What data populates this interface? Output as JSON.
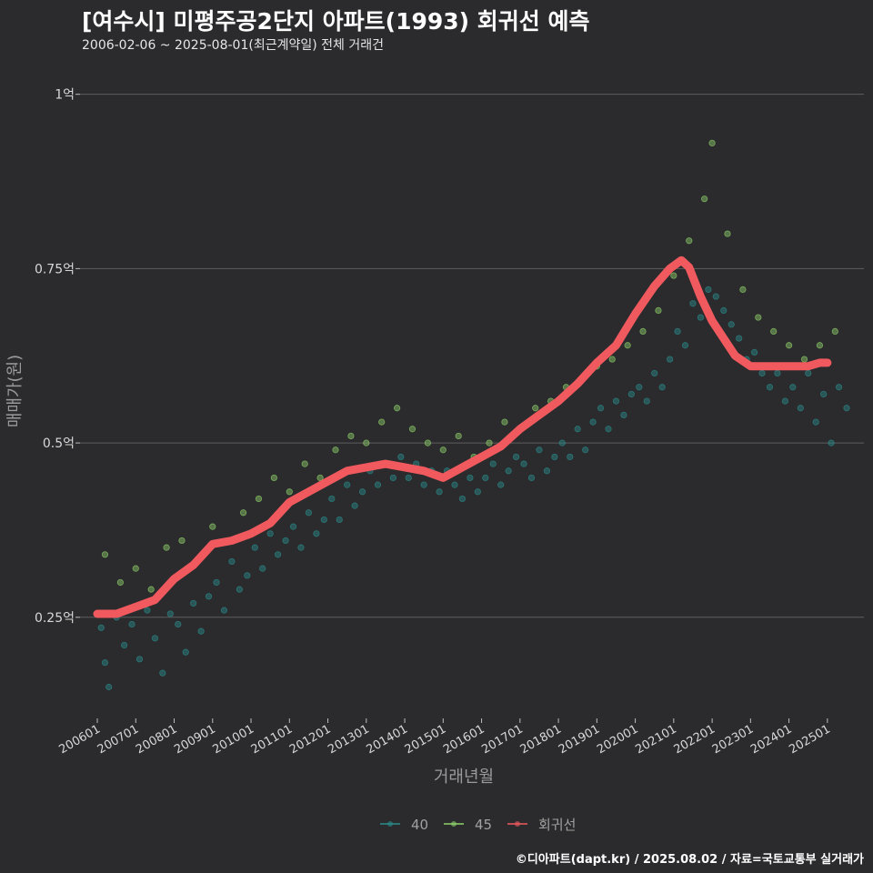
{
  "header": {
    "title": "[여수시] 미평주공2단지 아파트(1993) 회귀선 예측",
    "subtitle": "2006-02-06 ~ 2025-08-01(최근계약일) 전체 거래건"
  },
  "footer": {
    "credit": "©디아파트(dapt.kr) / 2025.08.02 / 자료=국토교통부 실거래가"
  },
  "colors": {
    "background": "#2b2b2d",
    "grid": "#5e5e60",
    "series_40": "#2a8c8c",
    "series_45": "#8ed16a",
    "regression": "#f05a5f"
  },
  "chart_data": {
    "type": "scatter",
    "xlabel": "거래년월",
    "ylabel": "매매가(원)",
    "x_tick_labels": [
      "200601",
      "200701",
      "200801",
      "200901",
      "201001",
      "201101",
      "201201",
      "201301",
      "201401",
      "201501",
      "201601",
      "201701",
      "201801",
      "201901",
      "202001",
      "202101",
      "202201",
      "202301",
      "202401",
      "202501"
    ],
    "y_ticks": [
      {
        "value": 25000000,
        "label": "0.25억"
      },
      {
        "value": 50000000,
        "label": "0.5억"
      },
      {
        "value": 75000000,
        "label": "0.75억"
      },
      {
        "value": 100000000,
        "label": "1억"
      }
    ],
    "ylim": [
      10500000,
      107000000
    ],
    "xlim": [
      2005.55,
      2025.95
    ],
    "grid": "horizontal",
    "legend_position": "bottom",
    "series": [
      {
        "name": "40",
        "color": "#2a8c8c",
        "points": [
          [
            2006.1,
            23.5
          ],
          [
            2006.2,
            18.5
          ],
          [
            2006.3,
            15
          ],
          [
            2006.5,
            25
          ],
          [
            2006.7,
            21
          ],
          [
            2006.9,
            24
          ],
          [
            2007.1,
            19
          ],
          [
            2007.3,
            26
          ],
          [
            2007.5,
            22
          ],
          [
            2007.7,
            17
          ],
          [
            2007.9,
            25.5
          ],
          [
            2008.1,
            24
          ],
          [
            2008.3,
            20
          ],
          [
            2008.5,
            27
          ],
          [
            2008.7,
            23
          ],
          [
            2008.9,
            28
          ],
          [
            2009.1,
            30
          ],
          [
            2009.3,
            26
          ],
          [
            2009.5,
            33
          ],
          [
            2009.7,
            29
          ],
          [
            2009.9,
            31
          ],
          [
            2010.1,
            35
          ],
          [
            2010.3,
            32
          ],
          [
            2010.5,
            37
          ],
          [
            2010.7,
            34
          ],
          [
            2010.9,
            36
          ],
          [
            2011.1,
            38
          ],
          [
            2011.3,
            35
          ],
          [
            2011.5,
            40
          ],
          [
            2011.7,
            37
          ],
          [
            2011.9,
            39
          ],
          [
            2012.1,
            42
          ],
          [
            2012.3,
            39
          ],
          [
            2012.5,
            44
          ],
          [
            2012.7,
            41
          ],
          [
            2012.9,
            43
          ],
          [
            2013.1,
            46
          ],
          [
            2013.3,
            44
          ],
          [
            2013.5,
            47
          ],
          [
            2013.7,
            45
          ],
          [
            2013.9,
            48
          ],
          [
            2014.1,
            45
          ],
          [
            2014.3,
            47
          ],
          [
            2014.5,
            44
          ],
          [
            2014.7,
            46
          ],
          [
            2014.9,
            43
          ],
          [
            2015.1,
            46
          ],
          [
            2015.3,
            44
          ],
          [
            2015.5,
            42
          ],
          [
            2015.7,
            45
          ],
          [
            2015.9,
            43
          ],
          [
            2016.1,
            45
          ],
          [
            2016.3,
            47
          ],
          [
            2016.5,
            44
          ],
          [
            2016.7,
            46
          ],
          [
            2016.9,
            48
          ],
          [
            2017.1,
            47
          ],
          [
            2017.3,
            45
          ],
          [
            2017.5,
            49
          ],
          [
            2017.7,
            46
          ],
          [
            2017.9,
            48
          ],
          [
            2018.1,
            50
          ],
          [
            2018.3,
            48
          ],
          [
            2018.5,
            52
          ],
          [
            2018.7,
            49
          ],
          [
            2018.9,
            53
          ],
          [
            2019.1,
            55
          ],
          [
            2019.3,
            52
          ],
          [
            2019.5,
            56
          ],
          [
            2019.7,
            54
          ],
          [
            2019.9,
            57
          ],
          [
            2020.1,
            58
          ],
          [
            2020.3,
            56
          ],
          [
            2020.5,
            60
          ],
          [
            2020.7,
            58
          ],
          [
            2020.9,
            62
          ],
          [
            2021.1,
            66
          ],
          [
            2021.3,
            64
          ],
          [
            2021.5,
            70
          ],
          [
            2021.7,
            68
          ],
          [
            2021.9,
            72
          ],
          [
            2022.1,
            71
          ],
          [
            2022.3,
            69
          ],
          [
            2022.5,
            67
          ],
          [
            2022.7,
            65
          ],
          [
            2022.9,
            62
          ],
          [
            2023.1,
            63
          ],
          [
            2023.3,
            60
          ],
          [
            2023.5,
            58
          ],
          [
            2023.7,
            60
          ],
          [
            2023.9,
            56
          ],
          [
            2024.1,
            58
          ],
          [
            2024.3,
            55
          ],
          [
            2024.5,
            60
          ],
          [
            2024.7,
            53
          ],
          [
            2024.9,
            57
          ],
          [
            2025.1,
            50
          ],
          [
            2025.3,
            58
          ],
          [
            2025.5,
            55
          ]
        ]
      },
      {
        "name": "45",
        "color": "#8ed16a",
        "points": [
          [
            2006.2,
            34
          ],
          [
            2006.6,
            30
          ],
          [
            2007.0,
            32
          ],
          [
            2007.4,
            29
          ],
          [
            2007.8,
            35
          ],
          [
            2008.2,
            36
          ],
          [
            2008.6,
            33
          ],
          [
            2009.0,
            38
          ],
          [
            2009.4,
            36
          ],
          [
            2009.8,
            40
          ],
          [
            2010.2,
            42
          ],
          [
            2010.6,
            45
          ],
          [
            2011.0,
            43
          ],
          [
            2011.4,
            47
          ],
          [
            2011.8,
            45
          ],
          [
            2012.2,
            49
          ],
          [
            2012.6,
            51
          ],
          [
            2013.0,
            50
          ],
          [
            2013.4,
            53
          ],
          [
            2013.8,
            55
          ],
          [
            2014.2,
            52
          ],
          [
            2014.6,
            50
          ],
          [
            2015.0,
            49
          ],
          [
            2015.4,
            51
          ],
          [
            2015.8,
            48
          ],
          [
            2016.2,
            50
          ],
          [
            2016.6,
            53
          ],
          [
            2017.0,
            52
          ],
          [
            2017.4,
            55
          ],
          [
            2017.8,
            56
          ],
          [
            2018.2,
            58
          ],
          [
            2018.6,
            59
          ],
          [
            2019.0,
            61
          ],
          [
            2019.4,
            62
          ],
          [
            2019.8,
            64
          ],
          [
            2020.2,
            66
          ],
          [
            2020.6,
            69
          ],
          [
            2021.0,
            74
          ],
          [
            2021.4,
            79
          ],
          [
            2021.8,
            85
          ],
          [
            2022.0,
            93
          ],
          [
            2022.4,
            80
          ],
          [
            2022.8,
            72
          ],
          [
            2023.2,
            68
          ],
          [
            2023.6,
            66
          ],
          [
            2024.0,
            64
          ],
          [
            2024.4,
            62
          ],
          [
            2024.8,
            64
          ],
          [
            2025.2,
            66
          ]
        ]
      },
      {
        "name": "회귀선",
        "color": "#f05a5f",
        "points": [
          [
            2006.0,
            25.5
          ],
          [
            2006.5,
            25.5
          ],
          [
            2007.0,
            26.5
          ],
          [
            2007.5,
            27.5
          ],
          [
            2008.0,
            30.5
          ],
          [
            2008.5,
            32.5
          ],
          [
            2009.0,
            35.5
          ],
          [
            2009.5,
            36
          ],
          [
            2010.0,
            37
          ],
          [
            2010.5,
            38.5
          ],
          [
            2011.0,
            41.5
          ],
          [
            2011.5,
            43
          ],
          [
            2012.0,
            44.5
          ],
          [
            2012.5,
            46
          ],
          [
            2013.0,
            46.5
          ],
          [
            2013.5,
            47
          ],
          [
            2014.0,
            46.5
          ],
          [
            2014.5,
            46
          ],
          [
            2015.0,
            45
          ],
          [
            2015.5,
            46.5
          ],
          [
            2016.0,
            48
          ],
          [
            2016.5,
            49.5
          ],
          [
            2017.0,
            52
          ],
          [
            2017.5,
            54
          ],
          [
            2018.0,
            56
          ],
          [
            2018.5,
            58.5
          ],
          [
            2019.0,
            61.5
          ],
          [
            2019.5,
            64
          ],
          [
            2020.0,
            68.5
          ],
          [
            2020.5,
            72.5
          ],
          [
            2020.9,
            75
          ],
          [
            2021.2,
            76.2
          ],
          [
            2021.4,
            75.2
          ],
          [
            2021.7,
            71
          ],
          [
            2022.0,
            67.5
          ],
          [
            2022.3,
            65
          ],
          [
            2022.6,
            62.5
          ],
          [
            2023.0,
            61
          ],
          [
            2023.5,
            61
          ],
          [
            2024.0,
            61
          ],
          [
            2024.5,
            61
          ],
          [
            2024.8,
            61.5
          ],
          [
            2025.0,
            61.5
          ]
        ]
      }
    ]
  }
}
